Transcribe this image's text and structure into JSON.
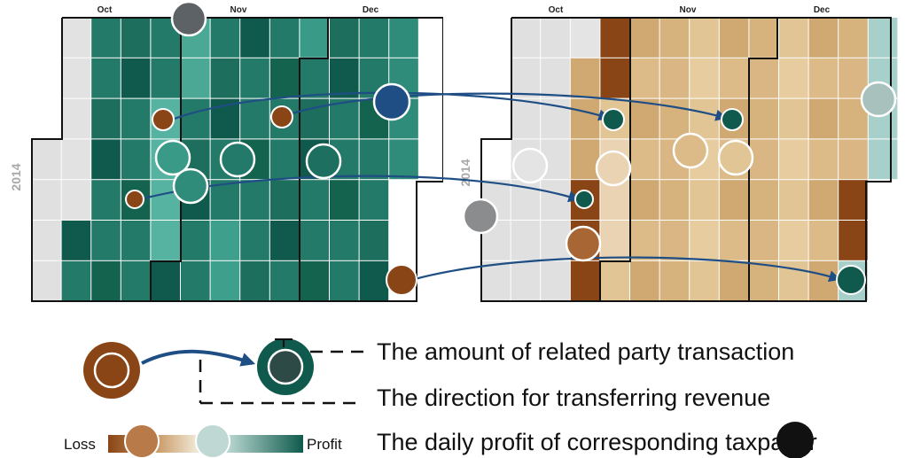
{
  "panels": [
    {
      "id": "left",
      "months": [
        "Oct",
        "Nov",
        "Dec"
      ],
      "year": "2014"
    },
    {
      "id": "right",
      "months": [
        "Oct",
        "Nov",
        "Dec"
      ],
      "year": "2014"
    }
  ],
  "legend": {
    "amount_label": "The amount of related party transaction",
    "direction_label": "The direction for transferring revenue",
    "profit_label": "The daily profit of corresponding taxpayer",
    "loss_label": "Loss",
    "profit_end_label": "Profit"
  },
  "colors": {
    "loss": "#8a4516",
    "loss_mid": "#b87a48",
    "neutral_light": "#e4cfa8",
    "neutral_blue": "#c0d8d4",
    "profit_mid": "#3a9a88",
    "profit": "#0f5a4c",
    "arrow": "#1f4e85",
    "gray_cell": "#e0e0e0"
  }
}
